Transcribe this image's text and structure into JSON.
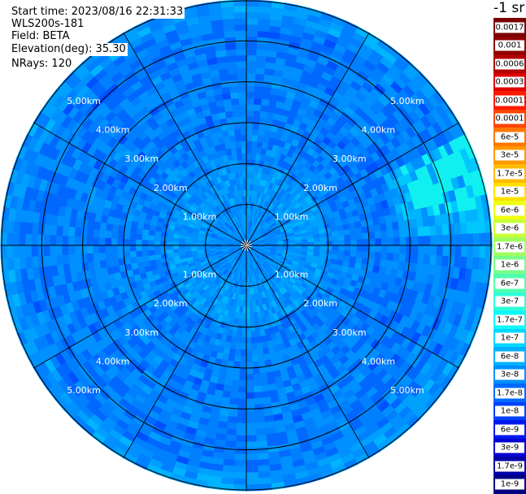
{
  "header": {
    "start_time": "Start time: 2023/08/16 22:31:33",
    "instrument": "WLS200s-181",
    "field": "Field: BETA",
    "elevation": "Elevation(deg): 35.30",
    "nrays": "NRays: 120"
  },
  "colorbar": {
    "unit": "-1 sr",
    "levels": [
      {
        "label": "0.0017",
        "color": "#7a0000"
      },
      {
        "label": "0.001",
        "color": "#8f0000"
      },
      {
        "label": "0.0006",
        "color": "#b00000"
      },
      {
        "label": "0.0003",
        "color": "#e00000"
      },
      {
        "label": "0.00017",
        "color": "#ff1a00"
      },
      {
        "label": "0.0001",
        "color": "#ff4400"
      },
      {
        "label": "6e-5",
        "color": "#ff7700"
      },
      {
        "label": "3e-5",
        "color": "#ff9900"
      },
      {
        "label": "1.7e-5",
        "color": "#ffbb00"
      },
      {
        "label": "1e-5",
        "color": "#ffe000"
      },
      {
        "label": "6e-6",
        "color": "#eeff10"
      },
      {
        "label": "3e-6",
        "color": "#c8ff38"
      },
      {
        "label": "1.7e-6",
        "color": "#a0ff60"
      },
      {
        "label": "1e-6",
        "color": "#78ff88"
      },
      {
        "label": "6e-7",
        "color": "#50ffb0"
      },
      {
        "label": "3e-7",
        "color": "#30ffd8"
      },
      {
        "label": "1.7e-7",
        "color": "#10f8f8"
      },
      {
        "label": "1e-7",
        "color": "#00d8ff"
      },
      {
        "label": "6e-8",
        "color": "#00b0ff"
      },
      {
        "label": "3e-8",
        "color": "#0090ff"
      },
      {
        "label": "1.7e-8",
        "color": "#0068ff"
      },
      {
        "label": "1e-8",
        "color": "#0040ff"
      },
      {
        "label": "6e-9",
        "color": "#0018f0"
      },
      {
        "label": "3e-9",
        "color": "#0000d0"
      },
      {
        "label": "1.7e-9",
        "color": "#0000a8"
      },
      {
        "label": "1e-9",
        "color": "#000080"
      }
    ]
  },
  "chart_data": {
    "type": "heatmap",
    "projection": "polar PPI",
    "field": "BETA",
    "elevation_deg": 35.3,
    "n_rays": 120,
    "range_rings_km": [
      1,
      2,
      3,
      4,
      5
    ],
    "range_labels": [
      "1.00km",
      "2.00km",
      "3.00km",
      "4.00km",
      "5.00km"
    ],
    "spokes_deg": [
      0,
      30,
      60,
      90,
      120,
      150,
      180,
      210,
      240,
      270,
      300,
      330
    ],
    "max_range_km": 6.0,
    "typical_values": "mostly 3e-8 to 1e-7 sr-1, local 1.7e-7 near east edge"
  }
}
